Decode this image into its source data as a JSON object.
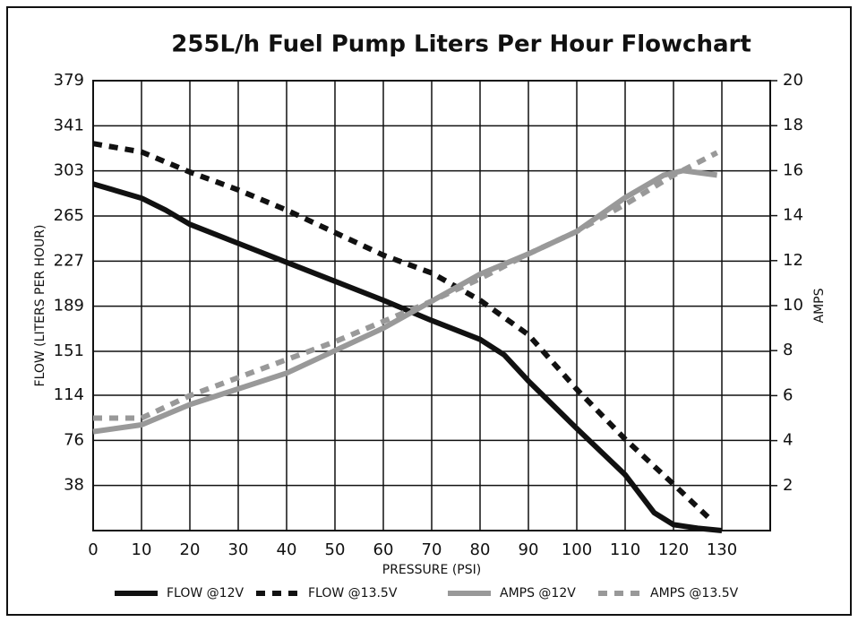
{
  "chart_data": {
    "type": "line",
    "title": "255L/h Fuel Pump Liters Per Hour Flowchart",
    "x_label": "PRESSURE (PSI)",
    "y_label": "FLOW (LITERS PER HOUR)",
    "y2_label": "AMPS",
    "xlim": [
      0,
      140
    ],
    "xticks": [
      0,
      10,
      20,
      30,
      40,
      50,
      60,
      70,
      80,
      90,
      100,
      110,
      120,
      130
    ],
    "ylim": [
      0,
      379
    ],
    "yticks": [
      38,
      76,
      114,
      151,
      189,
      227,
      265,
      303,
      341,
      379
    ],
    "y2lim": [
      0,
      20
    ],
    "y2ticks": [
      2,
      4,
      6,
      8,
      10,
      12,
      14,
      16,
      18,
      20
    ],
    "grid": true,
    "legend": "bottom",
    "series": [
      {
        "name": "FLOW @12V",
        "color": "#111111",
        "dashed": false,
        "x": [
          0,
          10,
          15,
          20,
          30,
          40,
          50,
          60,
          70,
          80,
          85,
          90,
          100,
          110,
          116,
          120,
          125,
          130
        ],
        "values": [
          292,
          280,
          270,
          258,
          242,
          226,
          210,
          194,
          177,
          161,
          148,
          126,
          86,
          47,
          15,
          5,
          2,
          0
        ]
      },
      {
        "name": "FLOW @13.5V",
        "color": "#111111",
        "dashed": true,
        "x": [
          0,
          10,
          20,
          30,
          40,
          50,
          60,
          70,
          80,
          90,
          100,
          110,
          120,
          128
        ],
        "values": [
          326,
          319,
          302,
          287,
          270,
          251,
          232,
          217,
          194,
          165,
          119,
          77,
          39,
          8
        ]
      },
      {
        "name": "AMPS @12V",
        "color": "#999999",
        "dashed": false,
        "axis": "y2",
        "x": [
          0,
          10,
          20,
          30,
          40,
          50,
          60,
          70,
          80,
          90,
          100,
          110,
          118,
          122,
          129
        ],
        "values": [
          4.4,
          4.7,
          5.6,
          6.3,
          7.0,
          8.0,
          9.0,
          10.2,
          11.4,
          12.3,
          13.3,
          14.8,
          15.8,
          16.0,
          15.8
        ]
      },
      {
        "name": "AMPS @13.5V",
        "color": "#999999",
        "dashed": true,
        "axis": "y2",
        "x": [
          0,
          10,
          20,
          30,
          40,
          50,
          60,
          70,
          80,
          90,
          100,
          110,
          120,
          129
        ],
        "values": [
          5.0,
          5.0,
          6.0,
          6.8,
          7.6,
          8.4,
          9.3,
          10.2,
          11.2,
          12.3,
          13.3,
          14.5,
          15.8,
          16.8
        ]
      }
    ]
  }
}
